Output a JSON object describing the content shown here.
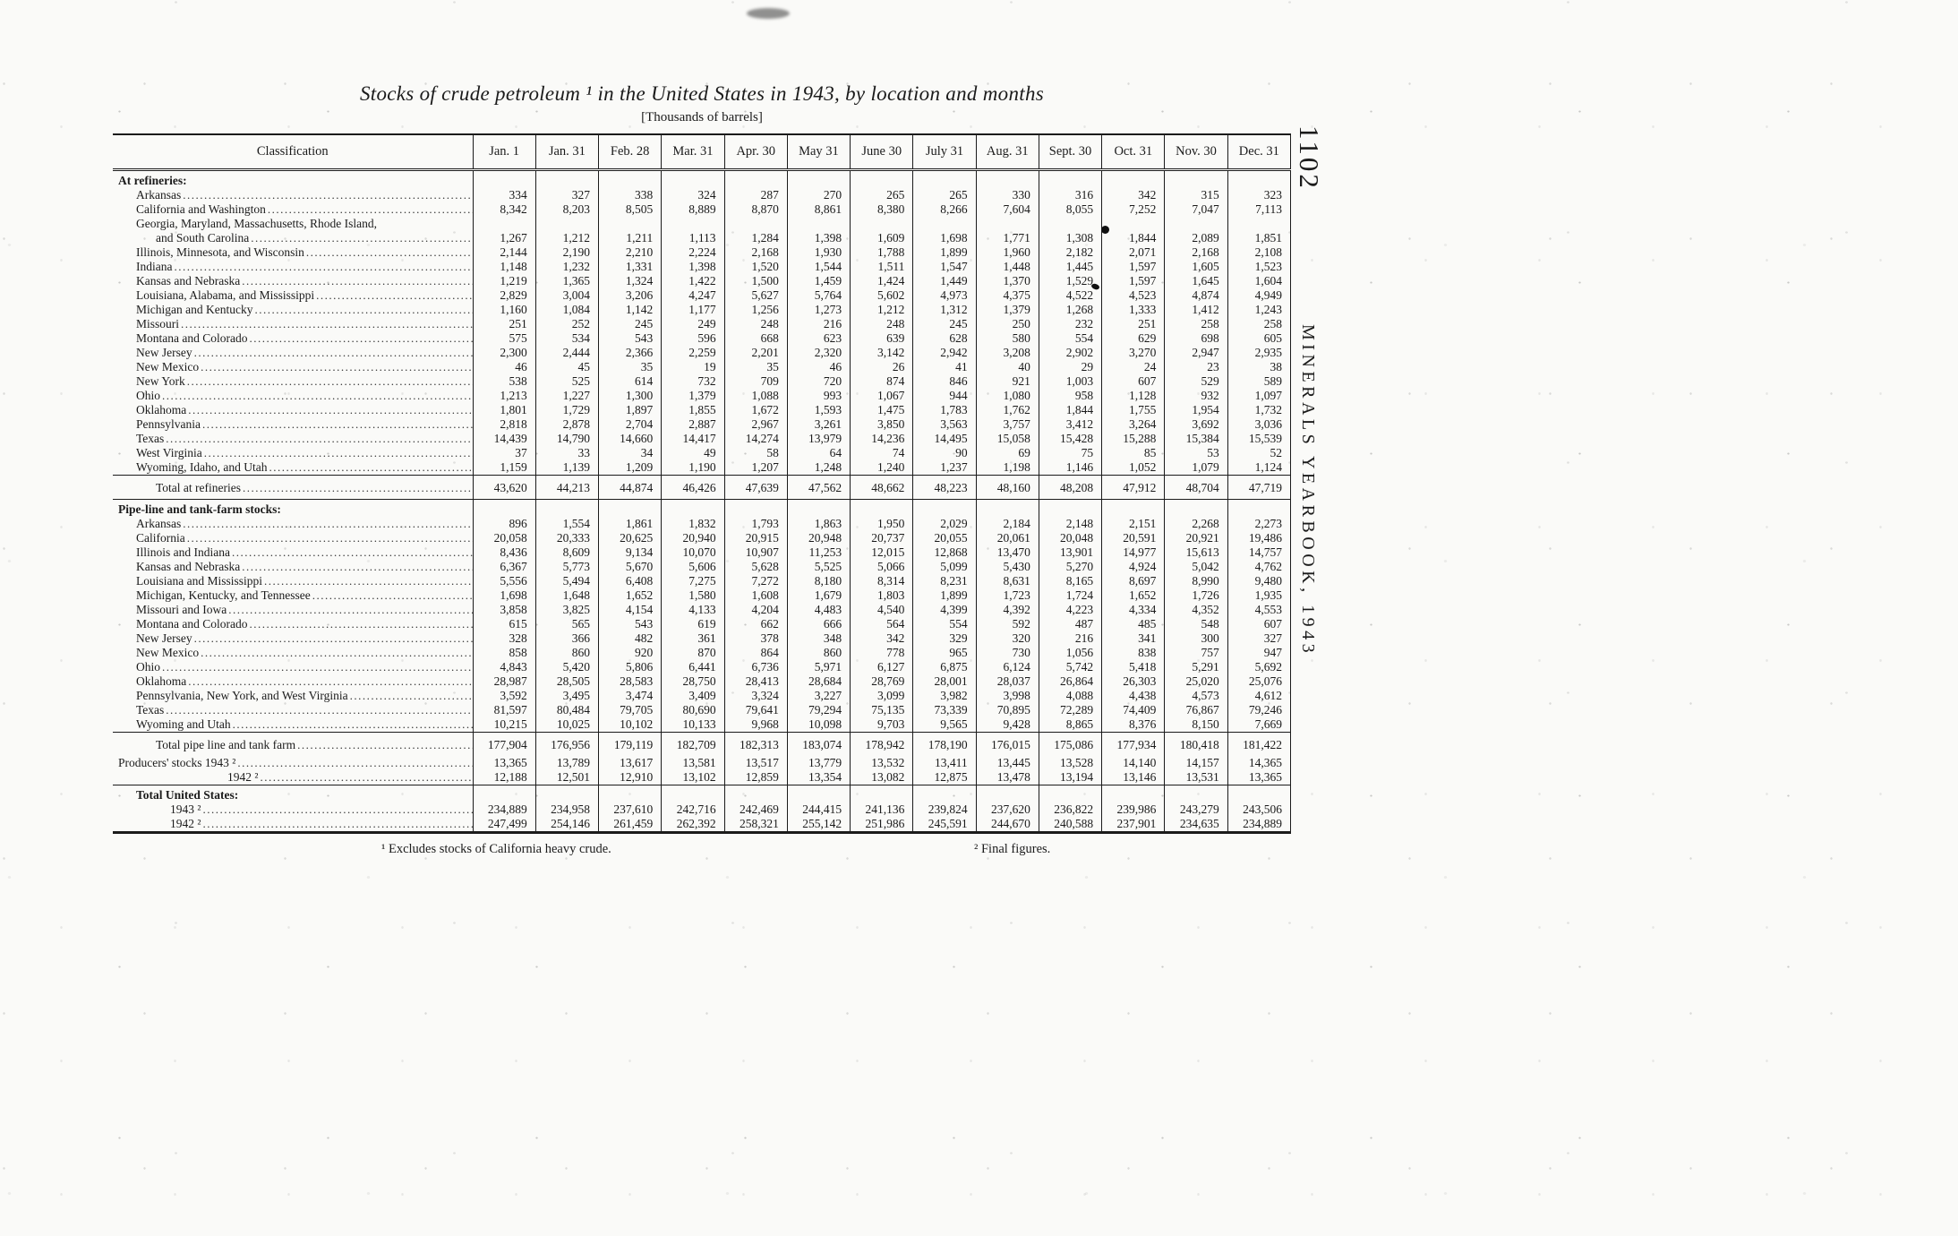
{
  "colors": {
    "paper": "#fafaf8",
    "ink": "#1b1b1b"
  },
  "page": {
    "page_number": "1102",
    "side_text": "MINERALS YEARBOOK, 1943"
  },
  "footnotes": {
    "f1": "¹ Excludes stocks of California heavy crude.",
    "f2": "² Final figures."
  },
  "table": {
    "title": "Stocks of crude petroleum ¹ in the United States in 1943, by location and months",
    "units": "[Thousands of barrels]",
    "columns": [
      "Classification",
      "Jan. 1",
      "Jan. 31",
      "Feb. 28",
      "Mar. 31",
      "Apr. 30",
      "May 31",
      "June 30",
      "July 31",
      "Aug. 31",
      "Sept. 30",
      "Oct. 31",
      "Nov. 30",
      "Dec. 31"
    ],
    "rows": [
      {
        "type": "section",
        "indent": 0,
        "label": "At refineries:"
      },
      {
        "type": "data",
        "indent": 1,
        "label": "Arkansas",
        "values": [
          "334",
          "327",
          "338",
          "324",
          "287",
          "270",
          "265",
          "265",
          "330",
          "316",
          "342",
          "315",
          "323"
        ]
      },
      {
        "type": "data",
        "indent": 1,
        "label": "California and Washington",
        "values": [
          "8,342",
          "8,203",
          "8,505",
          "8,889",
          "8,870",
          "8,861",
          "8,380",
          "8,266",
          "7,604",
          "8,055",
          "7,252",
          "7,047",
          "7,113"
        ]
      },
      {
        "type": "data2",
        "indent": 1,
        "label": "Georgia, Maryland, Massachusetts, Rhode Island,",
        "label2": "and South Carolina",
        "values": [
          "1,267",
          "1,212",
          "1,211",
          "1,113",
          "1,284",
          "1,398",
          "1,609",
          "1,698",
          "1,771",
          "1,308",
          "1,844",
          "2,089",
          "1,851"
        ]
      },
      {
        "type": "data",
        "indent": 1,
        "label": "Illinois, Minnesota, and Wisconsin",
        "values": [
          "2,144",
          "2,190",
          "2,210",
          "2,224",
          "2,168",
          "1,930",
          "1,788",
          "1,899",
          "1,960",
          "2,182",
          "2,071",
          "2,168",
          "2,108"
        ]
      },
      {
        "type": "data",
        "indent": 1,
        "label": "Indiana",
        "values": [
          "1,148",
          "1,232",
          "1,331",
          "1,398",
          "1,520",
          "1,544",
          "1,511",
          "1,547",
          "1,448",
          "1,445",
          "1,597",
          "1,605",
          "1,523"
        ]
      },
      {
        "type": "data",
        "indent": 1,
        "label": "Kansas and Nebraska",
        "values": [
          "1,219",
          "1,365",
          "1,324",
          "1,422",
          "1,500",
          "1,459",
          "1,424",
          "1,449",
          "1,370",
          "1,529",
          "1,597",
          "1,645",
          "1,604"
        ]
      },
      {
        "type": "data",
        "indent": 1,
        "label": "Louisiana, Alabama, and Mississippi",
        "values": [
          "2,829",
          "3,004",
          "3,206",
          "4,247",
          "5,627",
          "5,764",
          "5,602",
          "4,973",
          "4,375",
          "4,522",
          "4,523",
          "4,874",
          "4,949"
        ]
      },
      {
        "type": "data",
        "indent": 1,
        "label": "Michigan and Kentucky",
        "values": [
          "1,160",
          "1,084",
          "1,142",
          "1,177",
          "1,256",
          "1,273",
          "1,212",
          "1,312",
          "1,379",
          "1,268",
          "1,333",
          "1,412",
          "1,243"
        ]
      },
      {
        "type": "data",
        "indent": 1,
        "label": "Missouri",
        "values": [
          "251",
          "252",
          "245",
          "249",
          "248",
          "216",
          "248",
          "245",
          "250",
          "232",
          "251",
          "258",
          "258"
        ]
      },
      {
        "type": "data",
        "indent": 1,
        "label": "Montana and Colorado",
        "values": [
          "575",
          "534",
          "543",
          "596",
          "668",
          "623",
          "639",
          "628",
          "580",
          "554",
          "629",
          "698",
          "605"
        ]
      },
      {
        "type": "data",
        "indent": 1,
        "label": "New Jersey",
        "values": [
          "2,300",
          "2,444",
          "2,366",
          "2,259",
          "2,201",
          "2,320",
          "3,142",
          "2,942",
          "3,208",
          "2,902",
          "3,270",
          "2,947",
          "2,935"
        ]
      },
      {
        "type": "data",
        "indent": 1,
        "label": "New Mexico",
        "values": [
          "46",
          "45",
          "35",
          "19",
          "35",
          "46",
          "26",
          "41",
          "40",
          "29",
          "24",
          "23",
          "38"
        ]
      },
      {
        "type": "data",
        "indent": 1,
        "label": "New York",
        "values": [
          "538",
          "525",
          "614",
          "732",
          "709",
          "720",
          "874",
          "846",
          "921",
          "1,003",
          "607",
          "529",
          "589"
        ]
      },
      {
        "type": "data",
        "indent": 1,
        "label": "Ohio",
        "values": [
          "1,213",
          "1,227",
          "1,300",
          "1,379",
          "1,088",
          "993",
          "1,067",
          "944",
          "1,080",
          "958",
          "1,128",
          "932",
          "1,097"
        ]
      },
      {
        "type": "data",
        "indent": 1,
        "label": "Oklahoma",
        "values": [
          "1,801",
          "1,729",
          "1,897",
          "1,855",
          "1,672",
          "1,593",
          "1,475",
          "1,783",
          "1,762",
          "1,844",
          "1,755",
          "1,954",
          "1,732"
        ]
      },
      {
        "type": "data",
        "indent": 1,
        "label": "Pennsylvania",
        "values": [
          "2,818",
          "2,878",
          "2,704",
          "2,887",
          "2,967",
          "3,261",
          "3,850",
          "3,563",
          "3,757",
          "3,412",
          "3,264",
          "3,692",
          "3,036"
        ]
      },
      {
        "type": "data",
        "indent": 1,
        "label": "Texas",
        "values": [
          "14,439",
          "14,790",
          "14,660",
          "14,417",
          "14,274",
          "13,979",
          "14,236",
          "14,495",
          "15,058",
          "15,428",
          "15,288",
          "15,384",
          "15,539"
        ]
      },
      {
        "type": "data",
        "indent": 1,
        "label": "West Virginia",
        "values": [
          "37",
          "33",
          "34",
          "49",
          "58",
          "64",
          "74",
          "90",
          "69",
          "75",
          "85",
          "53",
          "52"
        ]
      },
      {
        "type": "data",
        "indent": 1,
        "label": "Wyoming, Idaho, and Utah",
        "values": [
          "1,159",
          "1,139",
          "1,209",
          "1,190",
          "1,207",
          "1,248",
          "1,240",
          "1,237",
          "1,198",
          "1,146",
          "1,052",
          "1,079",
          "1,124"
        ]
      },
      {
        "type": "total",
        "indent": 2,
        "rule_above": true,
        "rule_below": true,
        "label": "Total at refineries",
        "values": [
          "43,620",
          "44,213",
          "44,874",
          "46,426",
          "47,639",
          "47,562",
          "48,662",
          "48,223",
          "48,160",
          "48,208",
          "47,912",
          "48,704",
          "47,719"
        ]
      },
      {
        "type": "section",
        "indent": 0,
        "label": "Pipe-line and tank-farm stocks:"
      },
      {
        "type": "data",
        "indent": 1,
        "label": "Arkansas",
        "values": [
          "896",
          "1,554",
          "1,861",
          "1,832",
          "1,793",
          "1,863",
          "1,950",
          "2,029",
          "2,184",
          "2,148",
          "2,151",
          "2,268",
          "2,273"
        ]
      },
      {
        "type": "data",
        "indent": 1,
        "label": "California",
        "values": [
          "20,058",
          "20,333",
          "20,625",
          "20,940",
          "20,915",
          "20,948",
          "20,737",
          "20,055",
          "20,061",
          "20,048",
          "20,591",
          "20,921",
          "19,486"
        ]
      },
      {
        "type": "data",
        "indent": 1,
        "label": "Illinois and Indiana",
        "values": [
          "8,436",
          "8,609",
          "9,134",
          "10,070",
          "10,907",
          "11,253",
          "12,015",
          "12,868",
          "13,470",
          "13,901",
          "14,977",
          "15,613",
          "14,757"
        ]
      },
      {
        "type": "data",
        "indent": 1,
        "label": "Kansas and Nebraska",
        "values": [
          "6,367",
          "5,773",
          "5,670",
          "5,606",
          "5,628",
          "5,525",
          "5,066",
          "5,099",
          "5,430",
          "5,270",
          "4,924",
          "5,042",
          "4,762"
        ]
      },
      {
        "type": "data",
        "indent": 1,
        "label": "Louisiana and Mississippi",
        "values": [
          "5,556",
          "5,494",
          "6,408",
          "7,275",
          "7,272",
          "8,180",
          "8,314",
          "8,231",
          "8,631",
          "8,165",
          "8,697",
          "8,990",
          "9,480"
        ]
      },
      {
        "type": "data",
        "indent": 1,
        "label": "Michigan, Kentucky, and Tennessee",
        "values": [
          "1,698",
          "1,648",
          "1,652",
          "1,580",
          "1,608",
          "1,679",
          "1,803",
          "1,899",
          "1,723",
          "1,724",
          "1,652",
          "1,726",
          "1,935"
        ]
      },
      {
        "type": "data",
        "indent": 1,
        "label": "Missouri and Iowa",
        "values": [
          "3,858",
          "3,825",
          "4,154",
          "4,133",
          "4,204",
          "4,483",
          "4,540",
          "4,399",
          "4,392",
          "4,223",
          "4,334",
          "4,352",
          "4,553"
        ]
      },
      {
        "type": "data",
        "indent": 1,
        "label": "Montana and Colorado",
        "values": [
          "615",
          "565",
          "543",
          "619",
          "662",
          "666",
          "564",
          "554",
          "592",
          "487",
          "485",
          "548",
          "607"
        ]
      },
      {
        "type": "data",
        "indent": 1,
        "label": "New Jersey",
        "values": [
          "328",
          "366",
          "482",
          "361",
          "378",
          "348",
          "342",
          "329",
          "320",
          "216",
          "341",
          "300",
          "327"
        ]
      },
      {
        "type": "data",
        "indent": 1,
        "label": "New Mexico",
        "values": [
          "858",
          "860",
          "920",
          "870",
          "864",
          "860",
          "778",
          "965",
          "730",
          "1,056",
          "838",
          "757",
          "947"
        ]
      },
      {
        "type": "data",
        "indent": 1,
        "label": "Ohio",
        "values": [
          "4,843",
          "5,420",
          "5,806",
          "6,441",
          "6,736",
          "5,971",
          "6,127",
          "6,875",
          "6,124",
          "5,742",
          "5,418",
          "5,291",
          "5,692"
        ]
      },
      {
        "type": "data",
        "indent": 1,
        "label": "Oklahoma",
        "values": [
          "28,987",
          "28,505",
          "28,583",
          "28,750",
          "28,413",
          "28,684",
          "28,769",
          "28,001",
          "28,037",
          "26,864",
          "26,303",
          "25,020",
          "25,076"
        ]
      },
      {
        "type": "data",
        "indent": 1,
        "label": "Pennsylvania, New York, and West Virginia",
        "values": [
          "3,592",
          "3,495",
          "3,474",
          "3,409",
          "3,324",
          "3,227",
          "3,099",
          "3,982",
          "3,998",
          "4,088",
          "4,438",
          "4,573",
          "4,612"
        ]
      },
      {
        "type": "data",
        "indent": 1,
        "label": "Texas",
        "values": [
          "81,597",
          "80,484",
          "79,705",
          "80,690",
          "79,641",
          "79,294",
          "75,135",
          "73,339",
          "70,895",
          "72,289",
          "74,409",
          "76,867",
          "79,246"
        ]
      },
      {
        "type": "data",
        "indent": 1,
        "label": "Wyoming and Utah",
        "values": [
          "10,215",
          "10,025",
          "10,102",
          "10,133",
          "9,968",
          "10,098",
          "9,703",
          "9,565",
          "9,428",
          "8,865",
          "8,376",
          "8,150",
          "7,669"
        ]
      },
      {
        "type": "total",
        "indent": 2,
        "rule_above": true,
        "label": "Total pipe line and tank farm",
        "values": [
          "177,904",
          "176,956",
          "179,119",
          "182,709",
          "182,313",
          "183,074",
          "178,942",
          "178,190",
          "176,015",
          "175,086",
          "177,934",
          "180,418",
          "181,422"
        ]
      },
      {
        "type": "data",
        "indent": 0,
        "label": "Producers' stocks 1943 ²",
        "values": [
          "13,365",
          "13,789",
          "13,617",
          "13,581",
          "13,517",
          "13,779",
          "13,532",
          "13,411",
          "13,445",
          "13,528",
          "14,140",
          "14,157",
          "14,365"
        ]
      },
      {
        "type": "data",
        "indent": 4,
        "rule_below": true,
        "label": "1942 ²",
        "values": [
          "12,188",
          "12,501",
          "12,910",
          "13,102",
          "12,859",
          "13,354",
          "13,082",
          "12,875",
          "13,478",
          "13,194",
          "13,146",
          "13,531",
          "13,365"
        ]
      },
      {
        "type": "section",
        "indent": 1,
        "label": "Total United States:"
      },
      {
        "type": "data",
        "indent": 3,
        "label": "1943 ²",
        "values": [
          "234,889",
          "234,958",
          "237,610",
          "242,716",
          "242,469",
          "244,415",
          "241,136",
          "239,824",
          "237,620",
          "236,822",
          "239,986",
          "243,279",
          "243,506"
        ]
      },
      {
        "type": "data",
        "indent": 3,
        "heavy_below": true,
        "label": "1942 ²",
        "values": [
          "247,499",
          "254,146",
          "261,459",
          "262,392",
          "258,321",
          "255,142",
          "251,986",
          "245,591",
          "244,670",
          "240,588",
          "237,901",
          "234,635",
          "234,889"
        ]
      }
    ]
  }
}
